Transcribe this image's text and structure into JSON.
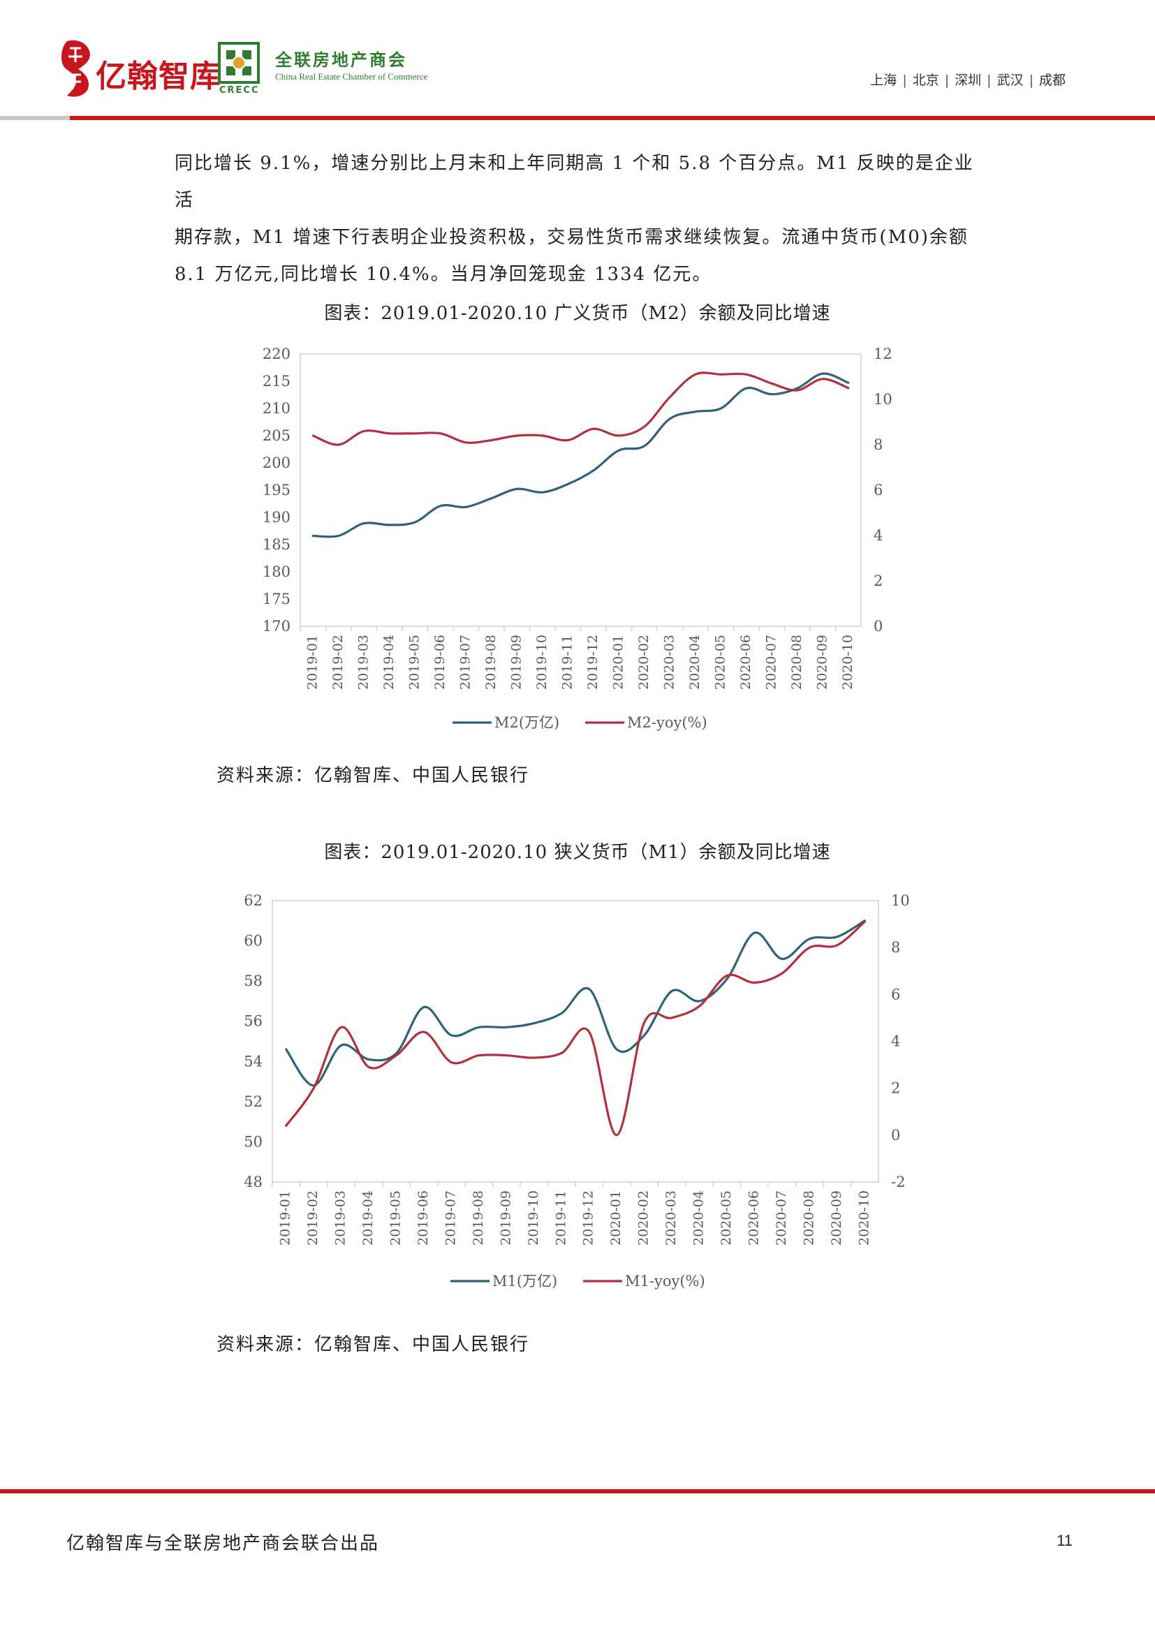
{
  "header": {
    "brand1": "亿翰智库",
    "brand2_cn": "全联房地产商会",
    "brand2_en": "China Real Estate Chamber of Commerce",
    "brand2_abbr": "CRECC",
    "cities": [
      "上海",
      "北京",
      "深圳",
      "武汉",
      "成都"
    ],
    "colors": {
      "brand_red": "#c8161d",
      "brand_green": "#2f7d32"
    }
  },
  "body": {
    "lines": [
      "同比增长 9.1%，增速分别比上月末和上年同期高 1 个和 5.8 个百分点。M1 反映的是企业活",
      "期存款，M1 增速下行表明企业投资积极，交易性货币需求继续恢复。流通中货币(M0)余额",
      "8.1 万亿元,同比增长 10.4%。当月净回笼现金 1334 亿元。"
    ]
  },
  "charts": [
    {
      "title": "图表：2019.01-2020.10 广义货币（M2）余额及同比增速",
      "source": "资料来源：亿翰智库、中国人民银行"
    },
    {
      "title": "图表：2019.01-2020.10 狭义货币（M1）余额及同比增速",
      "source": "资料来源：亿翰智库、中国人民银行"
    }
  ],
  "chart_data": [
    {
      "type": "line",
      "title": "图表：2019.01-2020.10 广义货币（M2）余额及同比增速",
      "categories": [
        "2019-01",
        "2019-02",
        "2019-03",
        "2019-04",
        "2019-05",
        "2019-06",
        "2019-07",
        "2019-08",
        "2019-09",
        "2019-10",
        "2019-11",
        "2019-12",
        "2020-01",
        "2020-02",
        "2020-03",
        "2020-04",
        "2020-05",
        "2020-06",
        "2020-07",
        "2020-08",
        "2020-09",
        "2020-10"
      ],
      "y_left": {
        "ticks": [
          170,
          175,
          180,
          185,
          190,
          195,
          200,
          205,
          210,
          215,
          220
        ],
        "lim": [
          170,
          220
        ]
      },
      "y_right": {
        "ticks": [
          0,
          2,
          4,
          6,
          8,
          10,
          12
        ],
        "lim": [
          0,
          12
        ]
      },
      "series": [
        {
          "name": "M2(万亿)",
          "axis": "left",
          "color": "#2e6277",
          "values": [
            186.6,
            186.6,
            188.9,
            188.6,
            189.1,
            192.1,
            191.9,
            193.5,
            195.2,
            194.6,
            196.1,
            198.6,
            202.3,
            203.1,
            208.1,
            209.4,
            210.0,
            213.7,
            212.6,
            213.7,
            216.4,
            214.7
          ]
        },
        {
          "name": "M2-yoy(%)",
          "axis": "right",
          "color": "#b2303c",
          "values": [
            8.4,
            8.0,
            8.6,
            8.5,
            8.5,
            8.5,
            8.1,
            8.2,
            8.4,
            8.4,
            8.2,
            8.7,
            8.4,
            8.8,
            10.1,
            11.1,
            11.1,
            11.1,
            10.7,
            10.4,
            10.9,
            10.5
          ]
        }
      ],
      "legend": "bottom"
    },
    {
      "type": "line",
      "title": "图表：2019.01-2020.10 狭义货币（M1）余额及同比增速",
      "categories": [
        "2019-01",
        "2019-02",
        "2019-03",
        "2019-04",
        "2019-05",
        "2019-06",
        "2019-07",
        "2019-08",
        "2019-09",
        "2019-10",
        "2019-11",
        "2019-12",
        "2020-01",
        "2020-02",
        "2020-03",
        "2020-04",
        "2020-05",
        "2020-06",
        "2020-07",
        "2020-08",
        "2020-09",
        "2020-10"
      ],
      "y_left": {
        "ticks": [
          48,
          50,
          52,
          54,
          56,
          58,
          60,
          62
        ],
        "lim": [
          48,
          62
        ]
      },
      "y_right": {
        "ticks": [
          -2,
          0,
          2,
          4,
          6,
          8,
          10
        ],
        "lim": [
          -2,
          10
        ]
      },
      "series": [
        {
          "name": "M1(万亿)",
          "axis": "left",
          "color": "#2e6277",
          "values": [
            54.6,
            52.8,
            54.8,
            54.1,
            54.4,
            56.7,
            55.3,
            55.7,
            55.7,
            55.9,
            56.4,
            57.6,
            54.6,
            55.3,
            57.5,
            57.0,
            58.1,
            60.4,
            59.1,
            60.1,
            60.2,
            61.0
          ]
        },
        {
          "name": "M1-yoy(%)",
          "axis": "right",
          "color": "#b2303c",
          "values": [
            0.4,
            2.0,
            4.6,
            2.9,
            3.4,
            4.4,
            3.1,
            3.4,
            3.4,
            3.3,
            3.5,
            4.4,
            0.0,
            4.8,
            5.0,
            5.5,
            6.8,
            6.5,
            6.9,
            8.0,
            8.1,
            9.1
          ]
        }
      ],
      "legend": "bottom"
    }
  ],
  "footer": {
    "text": "亿翰智库与全联房地产商会联合出品",
    "page": "11"
  }
}
